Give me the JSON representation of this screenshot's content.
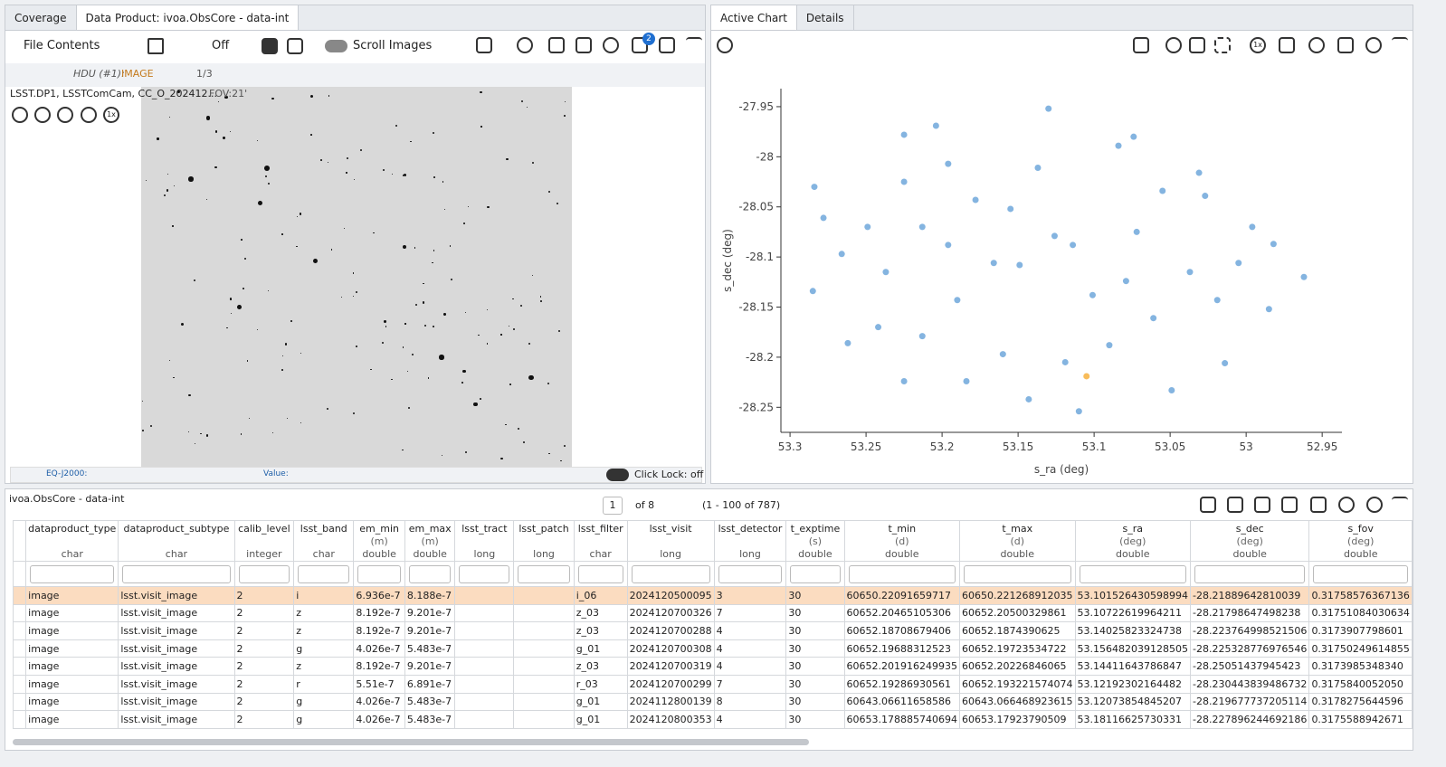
{
  "left_panel": {
    "tabs": [
      "Coverage",
      "Data Product: ivoa.ObsCore - data-int"
    ],
    "file_contents": "File Contents",
    "cut": "Off",
    "scroll_images": "Scroll Images",
    "layers_badge": "2",
    "hdu_label": "HDU (#1):",
    "hdu_type": "IMAGE",
    "hdu_page": "1/3",
    "image_title": "LSST.DP1, LSSTComCam, CC_O_202412...",
    "fov": "FOV:21'",
    "zoom_level": "1x",
    "coord_system": "EQ-J2000:",
    "value_label": "Value:",
    "click_lock": "Click Lock: off"
  },
  "right_panel": {
    "tabs": [
      "Active Chart",
      "Details"
    ],
    "zoom_level": "1x"
  },
  "chart_data": {
    "type": "scatter",
    "xlabel": "s_ra (deg)",
    "ylabel": "s_dec (deg)",
    "xlim": [
      53.306,
      52.937
    ],
    "ylim": [
      -28.275,
      -27.932
    ],
    "xticks": [
      53.3,
      53.25,
      53.2,
      53.15,
      53.1,
      53.05,
      53,
      52.95
    ],
    "yticks": [
      -27.95,
      -28,
      -28.05,
      -28.1,
      -28.15,
      -28.2,
      -28.25
    ],
    "series": [
      {
        "color": "#5b9bd5",
        "x": [
          53.284,
          53.13,
          52.962,
          52.982,
          53.11,
          53.204,
          53.225,
          53.285,
          53.262,
          53.074,
          53.027,
          53.166,
          53.149,
          53.196,
          53.101,
          53.072,
          53.037,
          53.019,
          53.119,
          53.16,
          53.237,
          53.249,
          53.178,
          53.137,
          53.084,
          53.031,
          52.996,
          53.014,
          53.049,
          53.143,
          53.184,
          53.225,
          53.213,
          53.266,
          53.278,
          53.196,
          53.225,
          53.155,
          53.114,
          53.079,
          53.061,
          53.09,
          53.19,
          53.242,
          52.985,
          53.005,
          53.055,
          53.126,
          53.213
        ],
        "values": [
          -28.03,
          -27.952,
          -28.12,
          -28.087,
          -28.254,
          -27.969,
          -27.978,
          -28.134,
          -28.186,
          -27.98,
          -28.039,
          -28.106,
          -28.108,
          -28.088,
          -28.138,
          -28.075,
          -28.115,
          -28.143,
          -28.205,
          -28.197,
          -28.115,
          -28.07,
          -28.043,
          -28.011,
          -27.989,
          -28.016,
          -28.07,
          -28.206,
          -28.233,
          -28.242,
          -28.224,
          -28.224,
          -28.179,
          -28.097,
          -28.061,
          -28.007,
          -28.025,
          -28.052,
          -28.088,
          -28.124,
          -28.161,
          -28.188,
          -28.143,
          -28.17,
          -28.152,
          -28.106,
          -28.034,
          -28.079,
          -28.07
        ]
      },
      {
        "color": "#f5a623",
        "x": [
          53.105
        ],
        "values": [
          -28.219
        ]
      }
    ]
  },
  "table": {
    "title": "ivoa.ObsCore - data-int",
    "page": "1",
    "page_of": "of 8",
    "range": "(1 - 100 of 787)",
    "columns": [
      {
        "name": "dataproduct_type",
        "type": "char"
      },
      {
        "name": "dataproduct_subtype",
        "type": "char"
      },
      {
        "name": "calib_level",
        "type": "integer"
      },
      {
        "name": "lsst_band",
        "type": "char"
      },
      {
        "name": "em_min",
        "unit": "(m)",
        "type": "double"
      },
      {
        "name": "em_max",
        "unit": "(m)",
        "type": "double"
      },
      {
        "name": "lsst_tract",
        "type": "long"
      },
      {
        "name": "lsst_patch",
        "type": "long"
      },
      {
        "name": "lsst_filter",
        "type": "char"
      },
      {
        "name": "lsst_visit",
        "type": "long"
      },
      {
        "name": "lsst_detector",
        "type": "long"
      },
      {
        "name": "t_exptime",
        "unit": "(s)",
        "type": "double"
      },
      {
        "name": "t_min",
        "unit": "(d)",
        "type": "double"
      },
      {
        "name": "t_max",
        "unit": "(d)",
        "type": "double"
      },
      {
        "name": "s_ra",
        "unit": "(deg)",
        "type": "double"
      },
      {
        "name": "s_dec",
        "unit": "(deg)",
        "type": "double"
      },
      {
        "name": "s_fov",
        "unit": "(deg)",
        "type": "double"
      }
    ],
    "rows": [
      [
        "image",
        "lsst.visit_image",
        "2",
        "i",
        "6.936e-7",
        "8.188e-7",
        null,
        null,
        "i_06",
        "2024120500095",
        "3",
        "30",
        "60650.22091659717",
        "60650.221268912035",
        "53.101526430598994",
        "-28.21889642810039",
        "0.31758576367136"
      ],
      [
        "image",
        "lsst.visit_image",
        "2",
        "z",
        "8.192e-7",
        "9.201e-7",
        null,
        null,
        "z_03",
        "2024120700326",
        "7",
        "30",
        "60652.20465105306",
        "60652.20500329861",
        "53.10722619964211",
        "-28.21798647498238",
        "0.31751084030634"
      ],
      [
        "image",
        "lsst.visit_image",
        "2",
        "z",
        "8.192e-7",
        "9.201e-7",
        null,
        null,
        "z_03",
        "2024120700288",
        "4",
        "30",
        "60652.18708679406",
        "60652.1874390625",
        "53.14025823324738",
        "-28.223764998521506",
        "0.3173907798601"
      ],
      [
        "image",
        "lsst.visit_image",
        "2",
        "g",
        "4.026e-7",
        "5.483e-7",
        null,
        null,
        "g_01",
        "2024120700308",
        "4",
        "30",
        "60652.19688312523",
        "60652.19723534722",
        "53.156482039128505",
        "-28.225328776976546",
        "0.31750249614855"
      ],
      [
        "image",
        "lsst.visit_image",
        "2",
        "z",
        "8.192e-7",
        "9.201e-7",
        null,
        null,
        "z_03",
        "2024120700319",
        "4",
        "30",
        "60652.201916249935",
        "60652.20226846065",
        "53.14411643786847",
        "-28.25051437945423",
        "0.3173985348340"
      ],
      [
        "image",
        "lsst.visit_image",
        "2",
        "r",
        "5.51e-7",
        "6.891e-7",
        null,
        null,
        "r_03",
        "2024120700299",
        "7",
        "30",
        "60652.19286930561",
        "60652.193221574074",
        "53.12192302164482",
        "-28.230443839486732",
        "0.3175840052050"
      ],
      [
        "image",
        "lsst.visit_image",
        "2",
        "g",
        "4.026e-7",
        "5.483e-7",
        null,
        null,
        "g_01",
        "2024112800139",
        "8",
        "30",
        "60643.06611658586",
        "60643.066468923615",
        "53.12073854845207",
        "-28.219677737205114",
        "0.3178275644596"
      ],
      [
        "image",
        "lsst.visit_image",
        "2",
        "g",
        "4.026e-7",
        "5.483e-7",
        null,
        null,
        "g_01",
        "2024120800353",
        "4",
        "30",
        "60653.178885740694",
        "60653.17923790509",
        "53.18116625730331",
        "-28.227896244692186",
        "0.3175588942671"
      ]
    ]
  }
}
